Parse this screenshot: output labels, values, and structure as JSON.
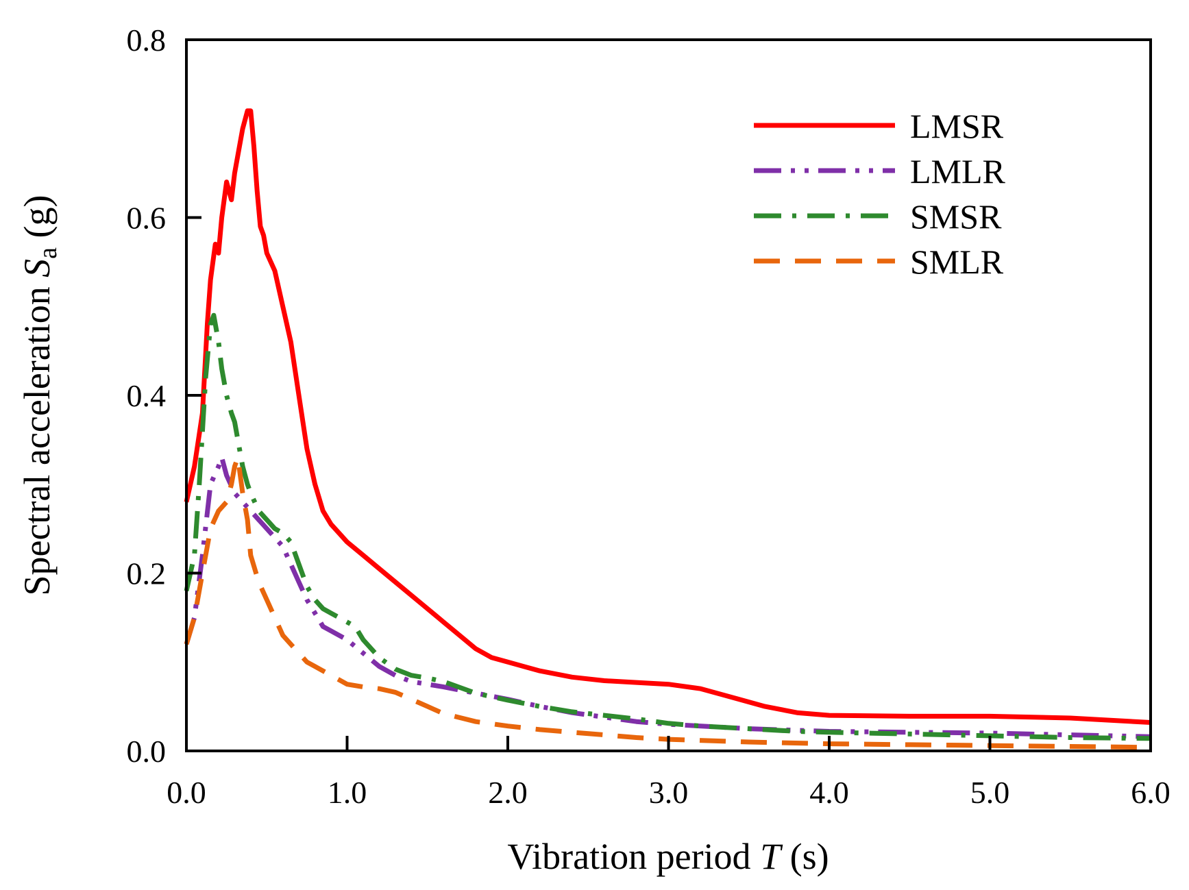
{
  "chart_data": {
    "type": "line",
    "xlabel": {
      "text": "Vibration period ",
      "var": "T",
      "unit": " (s)"
    },
    "ylabel": {
      "text": "Spectral acceleration ",
      "var": "S",
      "sub": "a",
      "unit": " (g)"
    },
    "xlim": [
      0,
      6
    ],
    "ylim": [
      0,
      0.8
    ],
    "xticks": [
      "0.0",
      "1.0",
      "2.0",
      "3.0",
      "4.0",
      "5.0",
      "6.0"
    ],
    "yticks": [
      "0.0",
      "0.2",
      "0.4",
      "0.6",
      "0.8"
    ],
    "grid": false,
    "legend_position": "top-right",
    "series": [
      {
        "name": "LMSR",
        "color": "#ff0000",
        "dash": "solid",
        "x": [
          0.0,
          0.05,
          0.1,
          0.13,
          0.15,
          0.18,
          0.2,
          0.22,
          0.25,
          0.28,
          0.3,
          0.33,
          0.35,
          0.38,
          0.4,
          0.42,
          0.44,
          0.46,
          0.48,
          0.5,
          0.55,
          0.6,
          0.65,
          0.7,
          0.75,
          0.8,
          0.85,
          0.9,
          0.95,
          1.0,
          1.1,
          1.2,
          1.3,
          1.4,
          1.5,
          1.6,
          1.7,
          1.8,
          1.9,
          2.0,
          2.2,
          2.4,
          2.6,
          2.8,
          3.0,
          3.2,
          3.4,
          3.6,
          3.8,
          4.0,
          4.5,
          5.0,
          5.5,
          6.0
        ],
        "y": [
          0.28,
          0.32,
          0.38,
          0.48,
          0.53,
          0.57,
          0.56,
          0.6,
          0.64,
          0.62,
          0.65,
          0.68,
          0.7,
          0.72,
          0.72,
          0.68,
          0.63,
          0.59,
          0.58,
          0.56,
          0.54,
          0.5,
          0.46,
          0.4,
          0.34,
          0.3,
          0.27,
          0.255,
          0.245,
          0.235,
          0.22,
          0.205,
          0.19,
          0.175,
          0.16,
          0.145,
          0.13,
          0.115,
          0.105,
          0.1,
          0.09,
          0.083,
          0.079,
          0.077,
          0.075,
          0.07,
          0.06,
          0.05,
          0.043,
          0.04,
          0.039,
          0.039,
          0.037,
          0.032
        ]
      },
      {
        "name": "LMLR",
        "color": "#7f2fa8",
        "dash": "dashdotdot",
        "x": [
          0.0,
          0.05,
          0.1,
          0.15,
          0.2,
          0.22,
          0.25,
          0.3,
          0.35,
          0.4,
          0.45,
          0.5,
          0.55,
          0.6,
          0.65,
          0.7,
          0.75,
          0.8,
          0.85,
          0.9,
          0.95,
          1.0,
          1.1,
          1.2,
          1.3,
          1.4,
          1.5,
          1.6,
          1.8,
          2.0,
          2.2,
          2.4,
          2.6,
          2.8,
          3.0,
          3.5,
          4.0,
          4.5,
          5.0,
          5.5,
          6.0
        ],
        "y": [
          0.12,
          0.15,
          0.22,
          0.3,
          0.32,
          0.33,
          0.31,
          0.29,
          0.28,
          0.27,
          0.26,
          0.25,
          0.24,
          0.23,
          0.21,
          0.19,
          0.17,
          0.155,
          0.14,
          0.135,
          0.13,
          0.125,
          0.11,
          0.095,
          0.085,
          0.078,
          0.075,
          0.072,
          0.065,
          0.058,
          0.05,
          0.043,
          0.038,
          0.033,
          0.03,
          0.025,
          0.022,
          0.021,
          0.02,
          0.018,
          0.016
        ]
      },
      {
        "name": "SMSR",
        "color": "#2e8a2e",
        "dash": "dashdot",
        "x": [
          0.0,
          0.05,
          0.08,
          0.12,
          0.15,
          0.17,
          0.2,
          0.22,
          0.25,
          0.28,
          0.3,
          0.33,
          0.35,
          0.38,
          0.4,
          0.45,
          0.5,
          0.55,
          0.6,
          0.65,
          0.7,
          0.75,
          0.8,
          0.85,
          0.9,
          0.95,
          1.0,
          1.05,
          1.1,
          1.2,
          1.3,
          1.4,
          1.5,
          1.6,
          1.8,
          2.0,
          2.2,
          2.4,
          2.6,
          2.8,
          3.0,
          3.2,
          3.5,
          3.8,
          4.0,
          4.5,
          5.0,
          5.5,
          6.0
        ],
        "y": [
          0.18,
          0.22,
          0.3,
          0.42,
          0.48,
          0.49,
          0.46,
          0.43,
          0.4,
          0.38,
          0.37,
          0.34,
          0.32,
          0.3,
          0.29,
          0.27,
          0.26,
          0.25,
          0.245,
          0.235,
          0.21,
          0.185,
          0.17,
          0.16,
          0.155,
          0.15,
          0.145,
          0.14,
          0.125,
          0.105,
          0.092,
          0.085,
          0.082,
          0.078,
          0.065,
          0.057,
          0.05,
          0.044,
          0.04,
          0.036,
          0.031,
          0.028,
          0.025,
          0.022,
          0.021,
          0.019,
          0.017,
          0.015,
          0.014
        ]
      },
      {
        "name": "SMLR",
        "color": "#e8660c",
        "dash": "dash",
        "x": [
          0.0,
          0.05,
          0.1,
          0.15,
          0.2,
          0.25,
          0.28,
          0.3,
          0.32,
          0.35,
          0.38,
          0.4,
          0.45,
          0.5,
          0.55,
          0.6,
          0.65,
          0.7,
          0.75,
          0.8,
          0.85,
          0.9,
          0.95,
          1.0,
          1.1,
          1.2,
          1.3,
          1.4,
          1.5,
          1.6,
          1.8,
          2.0,
          2.2,
          2.4,
          2.6,
          2.8,
          3.0,
          3.5,
          4.0,
          4.5,
          5.0,
          5.5,
          6.0
        ],
        "y": [
          0.12,
          0.15,
          0.2,
          0.25,
          0.27,
          0.28,
          0.3,
          0.32,
          0.33,
          0.29,
          0.26,
          0.22,
          0.19,
          0.17,
          0.15,
          0.13,
          0.12,
          0.11,
          0.1,
          0.095,
          0.09,
          0.085,
          0.08,
          0.075,
          0.072,
          0.07,
          0.066,
          0.058,
          0.05,
          0.042,
          0.033,
          0.028,
          0.024,
          0.021,
          0.018,
          0.015,
          0.013,
          0.01,
          0.008,
          0.007,
          0.006,
          0.005,
          0.004
        ]
      }
    ]
  }
}
